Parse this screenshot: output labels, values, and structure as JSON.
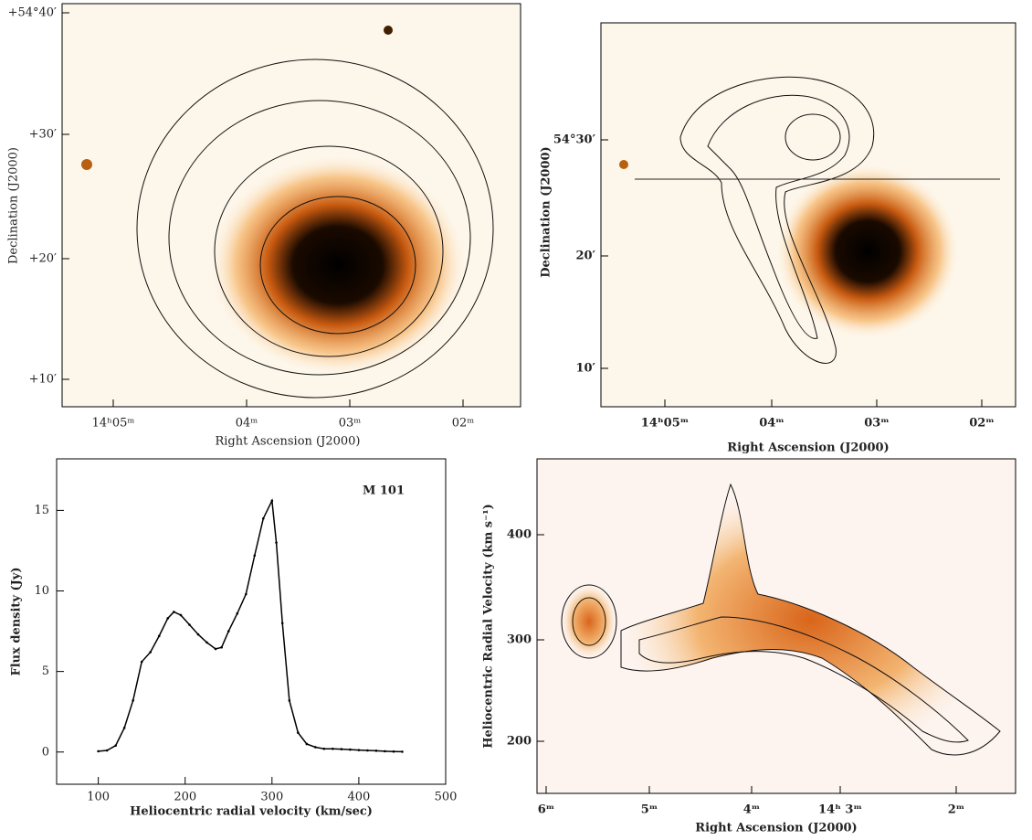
{
  "image_panels": [
    {
      "xlabel": "Right Ascension (J2000)",
      "ylabel": "Declination (J2000)",
      "xticks": [
        "14ʰ05ᵐ",
        "04ᵐ",
        "03ᵐ",
        "02ᵐ"
      ],
      "yticks": [
        "+54°40′",
        "+30′",
        "+20′",
        "+10′"
      ]
    },
    {
      "xlabel": "Right Ascension (J2000)",
      "ylabel": "Declination (J2000)",
      "xticks": [
        "14ʰ05ᵐ",
        "04ᵐ",
        "03ᵐ",
        "02ᵐ"
      ],
      "yticks": [
        "54°30′",
        "20′",
        "10′"
      ]
    },
    {
      "xlabel": "Right Ascension (J2000)",
      "ylabel": "Heliocentric Radial Velocity (km s⁻¹)",
      "xticks": [
        "6ᵐ",
        "5ᵐ",
        "4ᵐ",
        "14ʰ 3ᵐ",
        "2ᵐ"
      ],
      "yticks": [
        "400",
        "300",
        "200"
      ]
    }
  ],
  "chart_data": {
    "type": "line",
    "annotation": "M 101",
    "xlabel": "Heliocentric radial velocity  (km/sec)",
    "ylabel": "Flux density (Jy)",
    "x": [
      100,
      110,
      120,
      130,
      140,
      150,
      160,
      170,
      180,
      187,
      195,
      205,
      215,
      225,
      235,
      242,
      250,
      260,
      270,
      280,
      290,
      300,
      305,
      312,
      320,
      330,
      340,
      350,
      360,
      370,
      380,
      390,
      400,
      410,
      420,
      430,
      440,
      450
    ],
    "values": [
      0.05,
      0.1,
      0.4,
      1.5,
      3.2,
      5.6,
      6.2,
      7.2,
      8.3,
      8.7,
      8.5,
      7.9,
      7.3,
      6.8,
      6.4,
      6.5,
      7.5,
      8.6,
      9.8,
      12.2,
      14.5,
      15.6,
      13,
      8,
      3.2,
      1.2,
      0.5,
      0.3,
      0.2,
      0.2,
      0.18,
      0.15,
      0.12,
      0.1,
      0.08,
      0.05,
      0.03,
      0.02
    ],
    "color": "#000000",
    "xlim": [
      52,
      500
    ],
    "ylim": [
      -2,
      18.2
    ],
    "xticks": [
      100,
      200,
      300,
      400,
      500
    ],
    "yticks": [
      0,
      5,
      10,
      15
    ]
  }
}
